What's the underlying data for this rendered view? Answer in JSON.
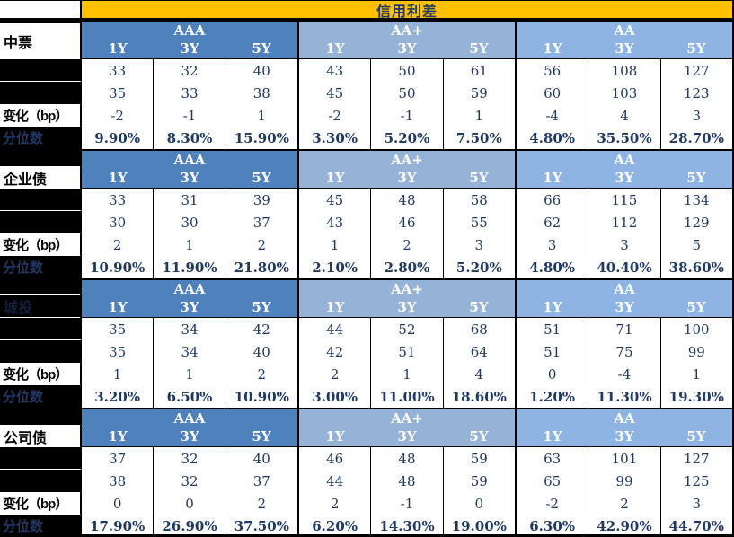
{
  "chart_data": {
    "type": "table",
    "title": "信用利差",
    "column_groups": [
      "AAA",
      "AA+",
      "AA"
    ],
    "tenors": [
      "1Y",
      "3Y",
      "5Y"
    ],
    "row_labels": {
      "change": "变化（bp）",
      "percentile": "分位数"
    },
    "colors": {
      "title_bg": "#FFC000",
      "group_aaa_bg": "#4F81BD",
      "group_aa_plus_bg": "#95B3D7",
      "group_aa_bg": "#8EB4E3",
      "value_text": "#1F3864",
      "left_column_bg": "#000000"
    },
    "sections": [
      {
        "name": "中票",
        "label_hidden": false,
        "current": [
          33,
          32,
          40,
          43,
          50,
          61,
          56,
          108,
          127
        ],
        "previous": [
          35,
          33,
          38,
          45,
          50,
          59,
          60,
          103,
          123
        ],
        "change": [
          -2,
          -1,
          1,
          -2,
          -1,
          1,
          -4,
          4,
          3
        ],
        "percentile": [
          "9.90%",
          "8.30%",
          "15.90%",
          "3.30%",
          "5.20%",
          "7.50%",
          "4.80%",
          "35.50%",
          "28.70%"
        ]
      },
      {
        "name": "企业债",
        "label_hidden": false,
        "current": [
          33,
          31,
          39,
          45,
          48,
          58,
          66,
          115,
          134
        ],
        "previous": [
          30,
          30,
          37,
          43,
          46,
          55,
          62,
          112,
          129
        ],
        "change": [
          2,
          1,
          2,
          1,
          2,
          3,
          3,
          3,
          5
        ],
        "percentile": [
          "10.90%",
          "11.90%",
          "21.80%",
          "2.10%",
          "2.80%",
          "5.20%",
          "4.80%",
          "40.40%",
          "38.60%"
        ]
      },
      {
        "name": "城投",
        "label_hidden": true,
        "current": [
          35,
          34,
          42,
          44,
          52,
          68,
          51,
          71,
          100
        ],
        "previous": [
          35,
          34,
          40,
          42,
          51,
          64,
          51,
          75,
          99
        ],
        "change": [
          1,
          1,
          2,
          2,
          1,
          4,
          0,
          -4,
          1
        ],
        "percentile": [
          "3.20%",
          "6.50%",
          "10.90%",
          "3.00%",
          "11.00%",
          "18.60%",
          "1.20%",
          "11.30%",
          "19.30%"
        ]
      },
      {
        "name": "公司债",
        "label_hidden": false,
        "current": [
          37,
          32,
          40,
          46,
          48,
          59,
          63,
          101,
          127
        ],
        "previous": [
          38,
          32,
          37,
          44,
          48,
          59,
          65,
          99,
          125
        ],
        "change": [
          0,
          0,
          2,
          2,
          -1,
          0,
          -2,
          2,
          3
        ],
        "percentile": [
          "17.90%",
          "26.90%",
          "37.50%",
          "6.20%",
          "14.30%",
          "19.00%",
          "6.30%",
          "42.90%",
          "44.70%"
        ]
      }
    ]
  }
}
